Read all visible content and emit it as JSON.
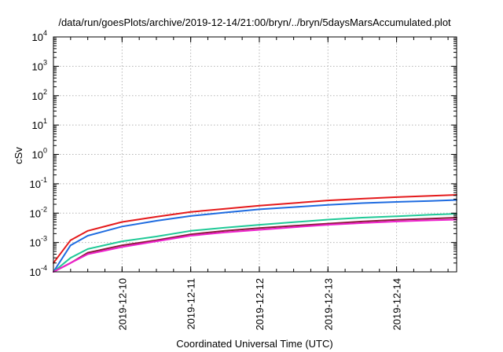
{
  "chart_data": {
    "type": "line",
    "title": "/data/run/goesPlots/archive/2019-12-14/21:00/bryn/../bryn/5daysMarsAccumulated.plot",
    "xlabel": "Coordinated Universal Time (UTC)",
    "ylabel": "cSv",
    "x_type": "time",
    "xlim": [
      "2019-12-09T00:00",
      "2019-12-14T21:00"
    ],
    "x_ticks": [
      "2019-12-10",
      "2019-12-11",
      "2019-12-12",
      "2019-12-13",
      "2019-12-14"
    ],
    "y_scale": "log",
    "ylim": [
      0.0001,
      10000
    ],
    "y_ticks": [
      {
        "value": 0.0001,
        "base": "10",
        "exp": "-4"
      },
      {
        "value": 0.001,
        "base": "10",
        "exp": "-3"
      },
      {
        "value": 0.01,
        "base": "10",
        "exp": "-2"
      },
      {
        "value": 0.1,
        "base": "10",
        "exp": "-1"
      },
      {
        "value": 1,
        "base": "10",
        "exp": "0"
      },
      {
        "value": 10,
        "base": "10",
        "exp": "1"
      },
      {
        "value": 100,
        "base": "10",
        "exp": "2"
      },
      {
        "value": 1000,
        "base": "10",
        "exp": "3"
      },
      {
        "value": 10000,
        "base": "10",
        "exp": "4"
      }
    ],
    "grid": true,
    "legend": "none",
    "x": [
      "2019-12-09T00:00",
      "2019-12-09T06:00",
      "2019-12-09T12:00",
      "2019-12-10T00:00",
      "2019-12-10T12:00",
      "2019-12-11T00:00",
      "2019-12-11T12:00",
      "2019-12-12T00:00",
      "2019-12-12T12:00",
      "2019-12-13T00:00",
      "2019-12-13T12:00",
      "2019-12-14T00:00",
      "2019-12-14T12:00",
      "2019-12-14T21:00"
    ],
    "series": [
      {
        "color": "#e41a1c",
        "values": [
          0.0002,
          0.0012,
          0.0025,
          0.005,
          0.0075,
          0.011,
          0.014,
          0.018,
          0.022,
          0.027,
          0.031,
          0.035,
          0.039,
          0.042
        ]
      },
      {
        "color": "#1e6be0",
        "values": [
          0.0001,
          0.0008,
          0.0017,
          0.0035,
          0.0055,
          0.008,
          0.0105,
          0.0135,
          0.016,
          0.019,
          0.022,
          0.024,
          0.026,
          0.028
        ]
      },
      {
        "color": "#20c997",
        "values": [
          0.0001,
          0.0003,
          0.0006,
          0.0011,
          0.0016,
          0.0025,
          0.0032,
          0.004,
          0.0049,
          0.006,
          0.007,
          0.0078,
          0.0088,
          0.0095
        ]
      },
      {
        "color": "#8b1a3a",
        "values": [
          0.0001,
          0.0002,
          0.00045,
          0.0008,
          0.0012,
          0.0019,
          0.0025,
          0.0031,
          0.0037,
          0.0044,
          0.0052,
          0.0059,
          0.0065,
          0.007
        ]
      },
      {
        "color": "#ee22cc",
        "values": [
          0.0001,
          0.0002,
          0.0004,
          0.0007,
          0.0011,
          0.0017,
          0.0022,
          0.0027,
          0.0033,
          0.004,
          0.0046,
          0.0052,
          0.0057,
          0.006
        ]
      }
    ]
  }
}
